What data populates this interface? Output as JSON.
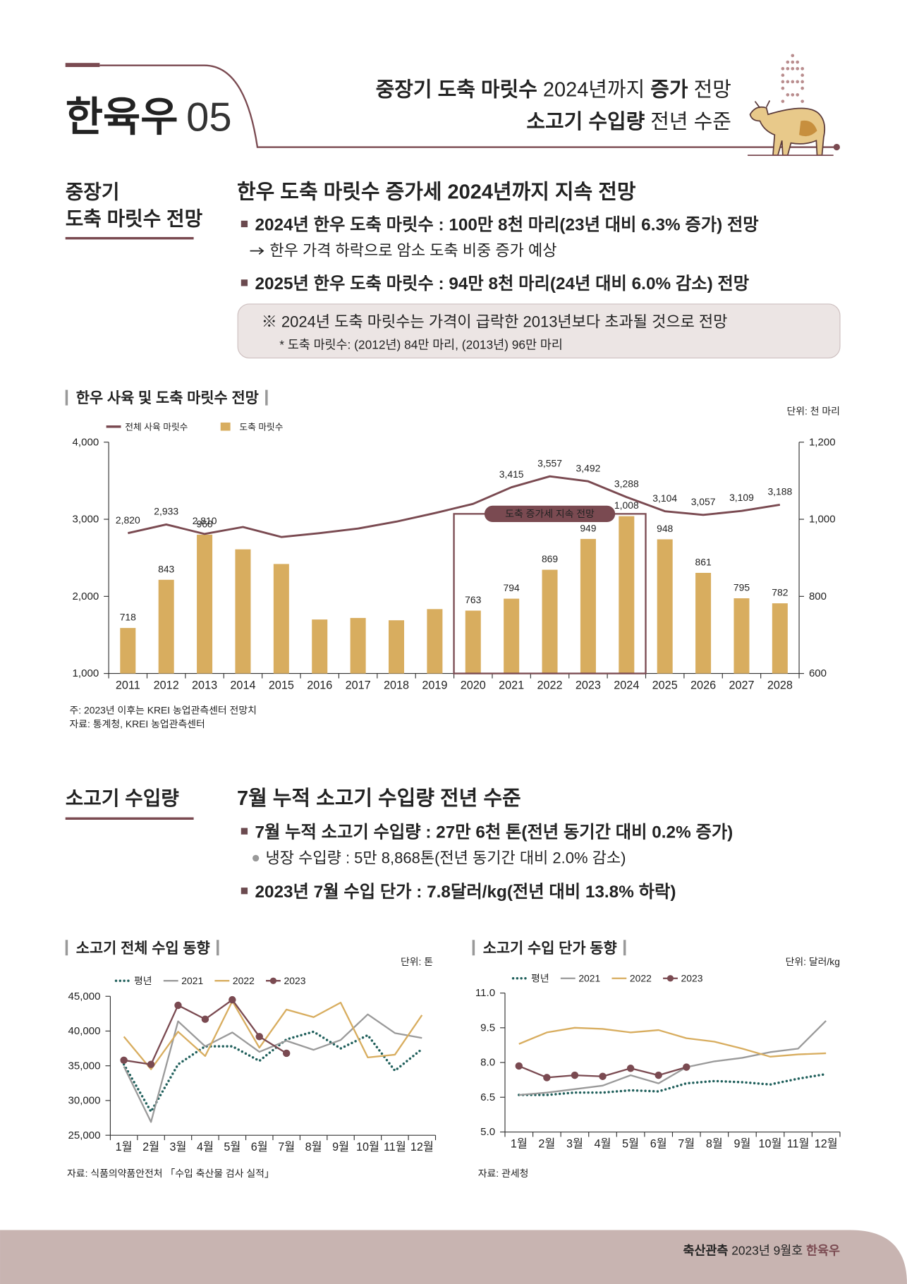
{
  "header": {
    "section": "한육우",
    "number": "05",
    "lines": [
      [
        {
          "text": "중장기 도축 마릿수",
          "bold": true
        },
        {
          "text": " 2024년까지 ",
          "bold": false
        },
        {
          "text": "증가",
          "bold": true
        },
        {
          "text": " 전망",
          "bold": false
        }
      ],
      [
        {
          "text": "소고기 수입량",
          "bold": true
        },
        {
          "text": " 전년 수준",
          "bold": false
        }
      ]
    ]
  },
  "section1": {
    "label": [
      "중장기",
      "도축 마릿수 전망"
    ],
    "title": "한우 도축 마릿수 증가세 2024년까지 지속 전망",
    "bullets": [
      {
        "text": "2024년 한우 도축 마릿수 : 100만 8천 마리(23년 대비 6.3% 증가) 전망",
        "arrow_note": "한우 가격 하락으로 암소 도축 비중 증가 예상"
      },
      {
        "text": "2025년 한우 도축 마릿수 : 94만 8천 마리(24년 대비 6.0% 감소) 전망"
      }
    ],
    "note": [
      "※ 2024년 도축 마릿수는 가격이 급락한 2013년보다 초과될 것으로 전망",
      "* 도축 마릿수: (2012년) 84만 마리, (2013년) 96만 마리"
    ]
  },
  "section2": {
    "label": [
      "소고기 수입량"
    ],
    "title": "7월 누적 소고기 수입량 전년 수준",
    "bullets": [
      {
        "text": "7월 누적 소고기 수입량 : 27만 6천 톤(전년 동기간 대비 0.2% 증가)",
        "dot_note": "냉장 수입량 : 5만 8,868톤(전년 동기간 대비 2.0% 감소)"
      },
      {
        "text": "2023년 7월 수입 단가 : 7.8달러/kg(전년 대비 13.8% 하락)"
      }
    ]
  },
  "chart_data": [
    {
      "type": "bar-line",
      "title": "한우 사육 및 도축 마릿수 전망",
      "unit": "단위: 천 마리",
      "categories": [
        "2011",
        "2012",
        "2013",
        "2014",
        "2015",
        "2016",
        "2017",
        "2018",
        "2019",
        "2020",
        "2021",
        "2022",
        "2023",
        "2024",
        "2025",
        "2026",
        "2027",
        "2028"
      ],
      "series": [
        {
          "name": "전체 사육 마릿수",
          "type": "line",
          "color": "#7a4a51",
          "values": [
            2820,
            2933,
            2810,
            2900,
            2770,
            2820,
            2880,
            2970,
            3080,
            3200,
            3415,
            3557,
            3492,
            3288,
            3104,
            3057,
            3109,
            3188
          ],
          "value_labels": [
            "2,820",
            "2,933",
            "2,810",
            null,
            null,
            null,
            null,
            null,
            null,
            null,
            "3,415",
            "3,557",
            "3,492",
            "3,288",
            "3,104",
            "3,057",
            "3,109",
            "3,188"
          ]
        },
        {
          "name": "도축 마릿수",
          "type": "bar",
          "axis": "y2",
          "color": "#d8ad5f",
          "values": [
            718,
            843,
            960,
            922,
            884,
            740,
            744,
            738,
            767,
            763,
            794,
            869,
            949,
            1008,
            948,
            861,
            795,
            782
          ],
          "value_labels": [
            "718",
            "843",
            "960",
            null,
            null,
            null,
            null,
            null,
            null,
            "763",
            "794",
            "869",
            "949",
            "1,008",
            "948",
            "861",
            "795",
            "782"
          ]
        }
      ],
      "ylim": [
        1000,
        4000
      ],
      "yticks": [
        {
          "value": 1000,
          "label": "1,000"
        },
        {
          "value": 2000,
          "label": "2,000"
        },
        {
          "value": 3000,
          "label": "3,000"
        },
        {
          "value": 4000,
          "label": "4,000"
        }
      ],
      "y2lim": [
        600,
        1200
      ],
      "y2ticks": [
        600,
        800,
        {
          "value": 1000,
          "label": "1,000"
        },
        {
          "value": 1200,
          "label": "1,200"
        }
      ],
      "annotation": {
        "text": "도축 증가세 지속 전망",
        "from": "2020",
        "to": "2024"
      },
      "notes": [
        "주: 2023년 이후는 KREI 농업관측센터 전망치",
        "자료: 통계청, KREI 농업관측센터"
      ]
    },
    {
      "type": "line",
      "title": "소고기 전체 수입 동향",
      "unit": "단위: 톤",
      "categories": [
        "1월",
        "2월",
        "3월",
        "4월",
        "5월",
        "6월",
        "7월",
        "8월",
        "9월",
        "10월",
        "11월",
        "12월"
      ],
      "series": [
        {
          "name": "평년",
          "color": "#1f5f5b",
          "dash": "dotted",
          "values": [
            35200,
            28400,
            35200,
            37800,
            37800,
            35700,
            38800,
            39900,
            37500,
            39400,
            34300,
            37400
          ]
        },
        {
          "name": "2021",
          "color": "#9a9a9a",
          "values": [
            34900,
            26900,
            41400,
            37800,
            39800,
            37000,
            38600,
            37300,
            38700,
            42400,
            39700,
            39000
          ]
        },
        {
          "name": "2022",
          "color": "#d8ad5f",
          "values": [
            39200,
            34500,
            39900,
            36400,
            44300,
            37600,
            43100,
            42000,
            44100,
            36200,
            36600,
            42300
          ]
        },
        {
          "name": "2023",
          "color": "#7a4a51",
          "markers": true,
          "values": [
            35800,
            35200,
            43700,
            41700,
            44500,
            39200,
            36800,
            null,
            null,
            null,
            null,
            null
          ]
        }
      ],
      "ylim": [
        25000,
        45000
      ],
      "yticks": [
        {
          "value": 25000,
          "label": "25,000"
        },
        {
          "value": 30000,
          "label": "30,000"
        },
        {
          "value": 35000,
          "label": "35,000"
        },
        {
          "value": 40000,
          "label": "40,000"
        },
        {
          "value": 45000,
          "label": "45,000"
        }
      ],
      "notes": [
        "자료: 식품의약품안전처 「수입 축산물 검사 실적」"
      ]
    },
    {
      "type": "line",
      "title": "소고기 수입 단가 동향",
      "unit": "단위: 달러/kg",
      "categories": [
        "1월",
        "2월",
        "3월",
        "4월",
        "5월",
        "6월",
        "7월",
        "8월",
        "9월",
        "10월",
        "11월",
        "12월"
      ],
      "series": [
        {
          "name": "평년",
          "color": "#1f5f5b",
          "dash": "dotted",
          "values": [
            6.6,
            6.6,
            6.7,
            6.7,
            6.8,
            6.75,
            7.1,
            7.2,
            7.15,
            7.05,
            7.3,
            7.5
          ]
        },
        {
          "name": "2021",
          "color": "#9a9a9a",
          "values": [
            6.6,
            6.7,
            6.85,
            7.0,
            7.45,
            7.1,
            7.8,
            8.05,
            8.2,
            8.45,
            8.6,
            9.8
          ]
        },
        {
          "name": "2022",
          "color": "#d8ad5f",
          "values": [
            8.8,
            9.3,
            9.5,
            9.45,
            9.3,
            9.4,
            9.05,
            8.9,
            8.6,
            8.25,
            8.35,
            8.4
          ]
        },
        {
          "name": "2023",
          "color": "#7a4a51",
          "markers": true,
          "values": [
            7.85,
            7.35,
            7.45,
            7.4,
            7.75,
            7.45,
            7.8,
            null,
            null,
            null,
            null,
            null
          ]
        }
      ],
      "ylim": [
        5,
        11
      ],
      "yticks": [
        {
          "value": 5,
          "label": "5.0"
        },
        6.5,
        {
          "value": 8,
          "label": "8.0"
        },
        9.5,
        {
          "value": 11,
          "label": "11.0"
        }
      ],
      "notes": [
        "자료: 관세청"
      ]
    }
  ],
  "footer": [
    {
      "text": "축산관측",
      "bold": true
    },
    {
      "text": " 2023년 9월호 ",
      "bold": false
    },
    {
      "text": "한육우",
      "bold": true,
      "accent": true
    }
  ]
}
